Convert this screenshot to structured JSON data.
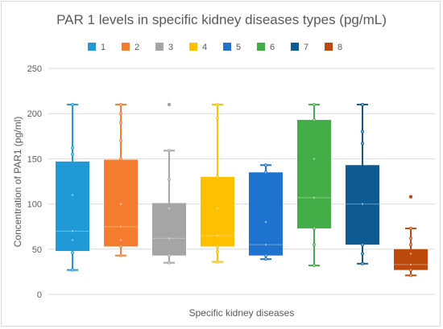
{
  "chart_data": {
    "type": "box",
    "title": "PAR 1 levels in specific kidney diseases types (pg/mL)",
    "xlabel": "Specific kidney diseases",
    "ylabel": "Concentration of PAR1 (pg/ml)",
    "ylim": [
      0,
      250
    ],
    "yticks": [
      0,
      50,
      100,
      150,
      200,
      250
    ],
    "grid": true,
    "legend_position": "top",
    "series": [
      {
        "name": "1",
        "color": "#1f9ad6",
        "min": 27,
        "q1": 48,
        "median": 70,
        "q3": 147,
        "max": 210,
        "points": [
          27,
          46,
          60,
          70,
          110,
          155,
          162,
          210
        ],
        "outliers": []
      },
      {
        "name": "2",
        "color": "#f47c2f",
        "min": 43,
        "q1": 53,
        "median": 75,
        "q3": 149,
        "max": 210,
        "points": [
          43,
          53,
          60,
          75,
          100,
          150,
          170,
          190,
          200,
          210
        ],
        "outliers": []
      },
      {
        "name": "3",
        "color": "#a5a5a5",
        "min": 35,
        "q1": 43,
        "median": 62,
        "q3": 101,
        "max": 159,
        "points": [
          35,
          43,
          62,
          95,
          127,
          159
        ],
        "outliers": [
          210
        ]
      },
      {
        "name": "4",
        "color": "#ffc000",
        "min": 36,
        "q1": 53,
        "median": 65,
        "q3": 130,
        "max": 210,
        "points": [
          36,
          47,
          53,
          65,
          95,
          130,
          195,
          210
        ],
        "outliers": []
      },
      {
        "name": "5",
        "color": "#1e73cf",
        "min": 39,
        "q1": 43,
        "median": 55,
        "q3": 135,
        "max": 143,
        "points": [
          39,
          43,
          55,
          80,
          135,
          143
        ],
        "outliers": []
      },
      {
        "name": "6",
        "color": "#43ad48",
        "min": 32,
        "q1": 73,
        "median": 107,
        "q3": 193,
        "max": 210,
        "points": [
          32,
          55,
          73,
          107,
          150,
          193,
          210
        ],
        "outliers": []
      },
      {
        "name": "7",
        "color": "#0e5b93",
        "min": 34,
        "q1": 55,
        "median": 100,
        "q3": 143,
        "max": 210,
        "points": [
          34,
          45,
          55,
          100,
          167,
          180,
          210
        ],
        "outliers": []
      },
      {
        "name": "8",
        "color": "#bb4a0c",
        "min": 21,
        "q1": 27,
        "median": 33,
        "q3": 50,
        "max": 73,
        "points": [
          21,
          27,
          33,
          45,
          55,
          62,
          73
        ],
        "outliers": [
          108
        ]
      }
    ]
  }
}
